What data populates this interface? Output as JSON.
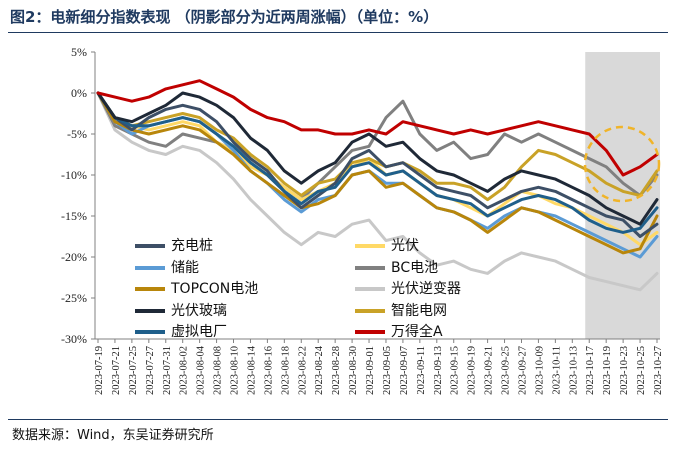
{
  "header": {
    "title": "图2：电新细分指数表现 （阴影部分为近两周涨幅）（单位：%）"
  },
  "footer": {
    "source": "数据来源：Wind，东吴证券研究所"
  },
  "chart_data": {
    "type": "line",
    "x": [
      "2023-07-19",
      "2023-07-21",
      "2023-07-25",
      "2023-07-27",
      "2023-07-31",
      "2023-08-02",
      "2023-08-04",
      "2023-08-08",
      "2023-08-10",
      "2023-08-14",
      "2023-08-16",
      "2023-08-18",
      "2023-08-22",
      "2023-08-24",
      "2023-08-28",
      "2023-08-30",
      "2023-09-01",
      "2023-09-05",
      "2023-09-07",
      "2023-09-11",
      "2023-09-13",
      "2023-09-15",
      "2023-09-19",
      "2023-09-21",
      "2023-09-25",
      "2023-09-27",
      "2023-10-09",
      "2023-10-11",
      "2023-10-13",
      "2023-10-17",
      "2023-10-19",
      "2023-10-23",
      "2023-10-25",
      "2023-10-27"
    ],
    "ylim": [
      -30,
      5
    ],
    "yticks": [
      5,
      0,
      -5,
      -10,
      -15,
      -20,
      -25,
      -30
    ],
    "ytick_labels": [
      "5%",
      "0%",
      "-5%",
      "-10%",
      "-15%",
      "-20%",
      "-25%",
      "-30%"
    ],
    "shaded_range": [
      "2023-10-17",
      "2023-10-27"
    ],
    "series": [
      {
        "name": "充电桩",
        "color": "#3d4f66",
        "values": [
          0,
          -3,
          -4.5,
          -3,
          -2,
          -1.5,
          -2,
          -3.5,
          -6,
          -8,
          -9.5,
          -12,
          -14,
          -12.5,
          -11,
          -8,
          -7,
          -9,
          -8.5,
          -10,
          -11.5,
          -12,
          -12.5,
          -14,
          -13,
          -12,
          -11.5,
          -12,
          -13,
          -14,
          -15,
          -15.5,
          -17.5,
          -16
        ]
      },
      {
        "name": "光伏",
        "color": "#ffd966",
        "values": [
          0,
          -3.5,
          -4,
          -4.5,
          -4,
          -3.5,
          -4,
          -6,
          -7,
          -9,
          -10,
          -11.5,
          -13,
          -12,
          -11,
          -9,
          -8,
          -10,
          -9.5,
          -11,
          -12.5,
          -13,
          -14,
          -15,
          -13.5,
          -12,
          -12.5,
          -13.5,
          -14,
          -15,
          -16,
          -17,
          -18.5,
          -17
        ]
      },
      {
        "name": "储能",
        "color": "#5b9bd5",
        "values": [
          0,
          -3.5,
          -5,
          -4,
          -3.5,
          -3,
          -3.5,
          -5,
          -7,
          -9.5,
          -11,
          -13,
          -14.5,
          -13,
          -12.5,
          -10,
          -9.5,
          -11,
          -11,
          -12.5,
          -14,
          -14.5,
          -15.5,
          -16.5,
          -15,
          -14,
          -14.5,
          -15,
          -16,
          -17,
          -18,
          -19,
          -20,
          -17.5
        ]
      },
      {
        "name": "BC电池",
        "color": "#808080",
        "values": [
          0,
          -4,
          -5,
          -6,
          -6.5,
          -5,
          -5.5,
          -6,
          -7,
          -8.5,
          -10,
          -11.5,
          -13,
          -11,
          -9,
          -7,
          -6.5,
          -3,
          -1,
          -5,
          -7,
          -6,
          -8,
          -7.5,
          -5,
          -6,
          -5,
          -6,
          -7,
          -8,
          -9,
          -11,
          -12.5,
          -10
        ]
      },
      {
        "name": "TOPCON电池",
        "color": "#b8860b",
        "values": [
          0,
          -3.5,
          -4.5,
          -5,
          -4.5,
          -4,
          -4.5,
          -6,
          -7.5,
          -9.5,
          -11,
          -12.5,
          -14,
          -13.5,
          -12.5,
          -10,
          -9.5,
          -11.5,
          -11,
          -12.5,
          -14,
          -14.5,
          -15.5,
          -17,
          -15.5,
          -14,
          -14.5,
          -15.5,
          -16.5,
          -17.5,
          -18.5,
          -19.5,
          -19,
          -15
        ]
      },
      {
        "name": "光伏逆变器",
        "color": "#c8c8c8",
        "values": [
          0,
          -4.5,
          -6,
          -7,
          -7.5,
          -6.5,
          -7,
          -8.5,
          -10.5,
          -13,
          -15,
          -17,
          -18.5,
          -17,
          -17.5,
          -16,
          -15.5,
          -18,
          -17.5,
          -19.5,
          -21,
          -20.5,
          -21.5,
          -22,
          -20.5,
          -19.5,
          -20,
          -20.5,
          -21.5,
          -22.5,
          -23,
          -23.5,
          -24,
          -22
        ]
      },
      {
        "name": "光伏玻璃",
        "color": "#1f2937",
        "values": [
          0,
          -3,
          -3.5,
          -2.5,
          -1.5,
          0,
          -0.5,
          -1.5,
          -3,
          -5.5,
          -7,
          -9.5,
          -11,
          -9.5,
          -8.5,
          -6,
          -5,
          -6.5,
          -6,
          -8,
          -9.5,
          -10,
          -11,
          -12,
          -10.5,
          -9.5,
          -10,
          -10.5,
          -11.5,
          -12.5,
          -14,
          -15,
          -16,
          -13
        ]
      },
      {
        "name": "智能电网",
        "color": "#c9a227",
        "values": [
          0,
          -3,
          -4,
          -3.5,
          -3,
          -2.5,
          -3,
          -4.5,
          -5.5,
          -7.5,
          -9,
          -11,
          -12.5,
          -11,
          -10.5,
          -8.5,
          -8,
          -9,
          -8.5,
          -9.5,
          -11,
          -11,
          -11.5,
          -13,
          -11.5,
          -9,
          -7,
          -7.5,
          -8.5,
          -9.5,
          -11,
          -12,
          -12.5,
          -9.5
        ]
      },
      {
        "name": "虚拟电厂",
        "color": "#1f5f8b",
        "values": [
          0,
          -3,
          -4,
          -4,
          -3.5,
          -3,
          -3.5,
          -5,
          -6.5,
          -8.5,
          -10,
          -12,
          -13.5,
          -12,
          -11.5,
          -9,
          -8.5,
          -10,
          -9.5,
          -11,
          -12.5,
          -13,
          -13.5,
          -15,
          -14,
          -13,
          -12.5,
          -13,
          -14,
          -15.5,
          -16.5,
          -17,
          -16.5,
          -14
        ]
      },
      {
        "name": "万得全A",
        "color": "#c00000",
        "values": [
          0,
          -0.5,
          -1,
          -0.5,
          0.5,
          1,
          1.5,
          0.5,
          -0.5,
          -2,
          -3,
          -3.5,
          -4.5,
          -4.5,
          -5,
          -5,
          -4.5,
          -5,
          -3.5,
          -4,
          -4.5,
          -5,
          -4.5,
          -5,
          -4.5,
          -4,
          -3.5,
          -4,
          -4.5,
          -5,
          -7,
          -10,
          -9,
          -7.5
        ]
      }
    ]
  }
}
